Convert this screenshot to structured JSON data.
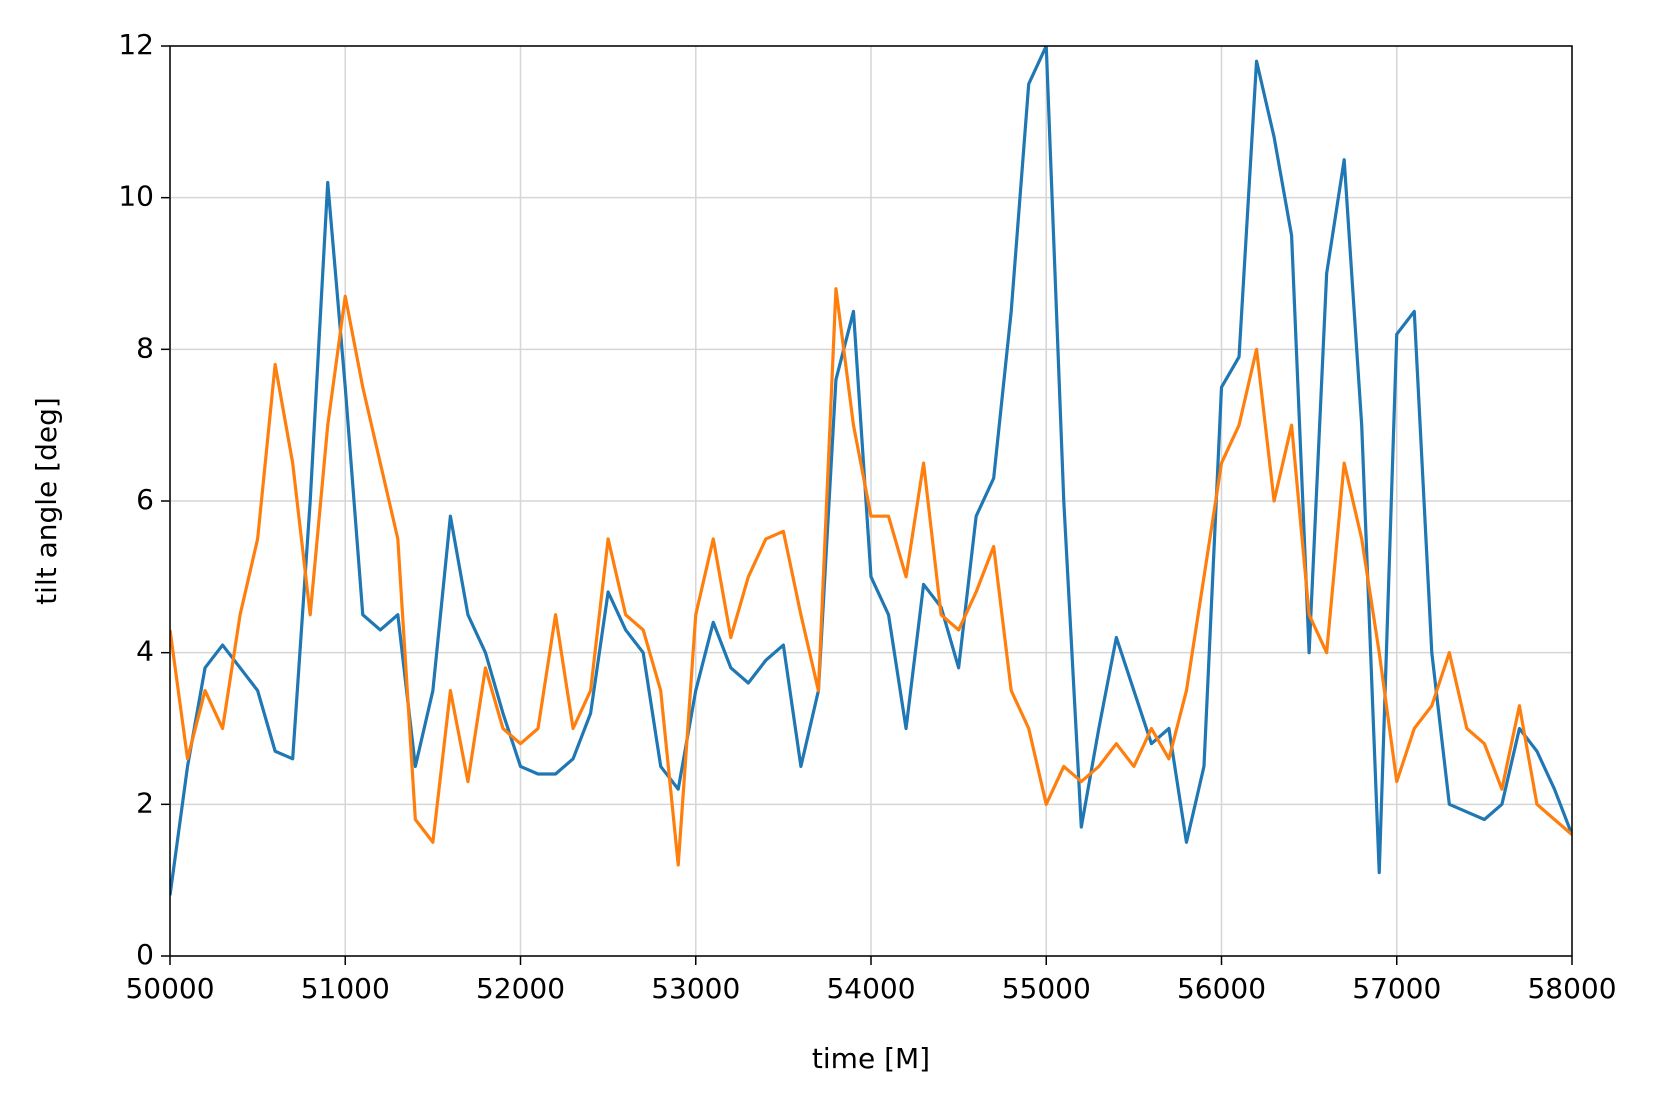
{
  "chart_data": {
    "type": "line",
    "xlabel": "time [M]",
    "ylabel": "tilt angle [deg]",
    "x": [
      50000,
      50100,
      50200,
      50300,
      50400,
      50500,
      50600,
      50700,
      50800,
      50900,
      51000,
      51100,
      51200,
      51300,
      51400,
      51500,
      51600,
      51700,
      51800,
      51900,
      52000,
      52100,
      52200,
      52300,
      52400,
      52500,
      52600,
      52700,
      52800,
      52900,
      53000,
      53100,
      53200,
      53300,
      53400,
      53500,
      53600,
      53700,
      53800,
      53900,
      54000,
      54100,
      54200,
      54300,
      54400,
      54500,
      54600,
      54700,
      54800,
      54900,
      55000,
      55100,
      55200,
      55300,
      55400,
      55500,
      55600,
      55700,
      55800,
      55900,
      56000,
      56100,
      56200,
      56300,
      56400,
      56500,
      56600,
      56700,
      56800,
      56900,
      57000,
      57100,
      57200,
      57300,
      57400,
      57500,
      57600,
      57700,
      57800,
      57900,
      58000
    ],
    "series": [
      {
        "color": "#1f77b4",
        "values": [
          0.8,
          2.5,
          3.8,
          4.1,
          3.8,
          3.5,
          2.7,
          2.6,
          6.0,
          10.2,
          7.5,
          4.5,
          4.3,
          4.5,
          2.5,
          3.5,
          5.8,
          4.5,
          4.0,
          3.2,
          2.5,
          2.4,
          2.4,
          2.6,
          3.2,
          4.8,
          4.3,
          4.0,
          2.5,
          2.2,
          3.5,
          4.4,
          3.8,
          3.6,
          3.9,
          4.1,
          2.5,
          3.5,
          7.6,
          8.5,
          5.0,
          4.5,
          3.0,
          4.9,
          4.6,
          3.8,
          5.8,
          6.3,
          8.5,
          11.5,
          12.0,
          6.0,
          1.7,
          3.0,
          4.2,
          3.5,
          2.8,
          3.0,
          1.5,
          2.5,
          7.5,
          7.9,
          11.8,
          10.8,
          9.5,
          4.0,
          9.0,
          10.5,
          7.0,
          1.1,
          8.2,
          8.5,
          4.0,
          2.0,
          1.9,
          1.8,
          2.0,
          3.0,
          2.7,
          2.2,
          1.6
        ]
      },
      {
        "color": "#ff7f0e",
        "values": [
          4.3,
          2.6,
          3.5,
          3.0,
          4.5,
          5.5,
          7.8,
          6.5,
          4.5,
          7.0,
          8.7,
          7.5,
          6.5,
          5.5,
          1.8,
          1.5,
          3.5,
          2.3,
          3.8,
          3.0,
          2.8,
          3.0,
          4.5,
          3.0,
          3.5,
          5.5,
          4.5,
          4.3,
          3.5,
          1.2,
          4.5,
          5.5,
          4.2,
          5.0,
          5.5,
          5.6,
          4.5,
          3.5,
          8.8,
          7.0,
          5.8,
          5.8,
          5.0,
          6.5,
          4.5,
          4.3,
          4.8,
          5.4,
          3.5,
          3.0,
          2.0,
          2.5,
          2.3,
          2.5,
          2.8,
          2.5,
          3.0,
          2.6,
          3.5,
          5.0,
          6.5,
          7.0,
          8.0,
          6.0,
          7.0,
          4.5,
          4.0,
          6.5,
          5.5,
          4.0,
          2.3,
          3.0,
          3.3,
          4.0,
          3.0,
          2.8,
          2.2,
          3.3,
          2.0,
          1.8,
          1.6
        ]
      }
    ],
    "xlim": [
      50000,
      58000
    ],
    "xticks": [
      50000,
      51000,
      52000,
      53000,
      54000,
      55000,
      56000,
      57000,
      58000
    ],
    "ylim": [
      0,
      12
    ],
    "yticks": [
      0,
      2,
      4,
      6,
      8,
      10,
      12
    ],
    "grid": true
  }
}
